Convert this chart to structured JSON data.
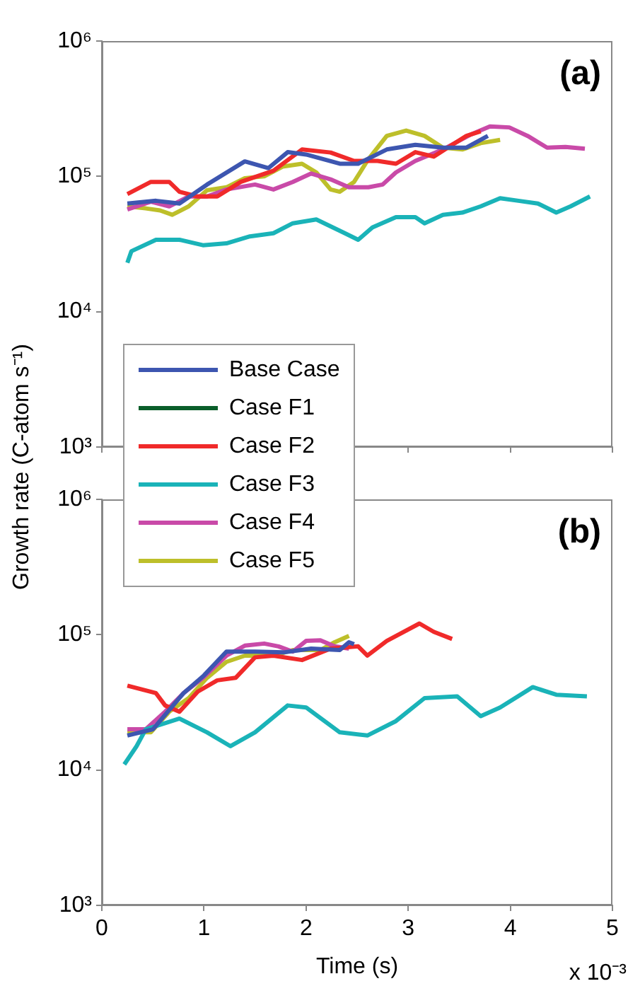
{
  "chart_data": [
    {
      "type": "line",
      "ylabel": "Growth rate (C-atom s⁻¹)",
      "annotations": [
        "(a)"
      ],
      "log": "y",
      "xlim": [
        0,
        5
      ],
      "xticks": [
        0,
        1,
        2,
        3,
        4,
        5
      ],
      "ylim": [
        1000,
        1000000
      ],
      "yticks": [
        {
          "value": 1000,
          "label": "10³"
        },
        {
          "value": 10000,
          "label": "10⁴"
        },
        {
          "value": 100000,
          "label": "10⁵"
        },
        {
          "value": 1000000,
          "label": "10⁶"
        }
      ],
      "tick_labels": "y",
      "grid": false,
      "legend": "bottom left",
      "marker": "none",
      "line_style": "solid",
      "series": [
        {
          "name": "Base Case",
          "color": "#3d56b0",
          "x": [
            0.25,
            0.53,
            0.76,
            1.03,
            1.4,
            1.63,
            1.82,
            2.0,
            2.33,
            2.51,
            2.79,
            3.07,
            3.34,
            3.57,
            3.78
          ],
          "values": [
            63000,
            66000,
            63000,
            87000,
            129000,
            115000,
            151000,
            145000,
            124000,
            124000,
            158000,
            171000,
            163000,
            163000,
            199000
          ]
        },
        {
          "name": "Case F1",
          "color": "#0a5e2a"
        },
        {
          "name": "Case F2",
          "color": "#f02a2a",
          "x": [
            0.25,
            0.48,
            0.66,
            0.76,
            0.94,
            1.13,
            1.36,
            1.68,
            1.96,
            2.24,
            2.47,
            2.7,
            2.88,
            3.07,
            3.25,
            3.43,
            3.57,
            3.71
          ],
          "values": [
            74000,
            91000,
            91000,
            77000,
            71000,
            71000,
            91000,
            110000,
            158000,
            150000,
            130000,
            130000,
            124000,
            151000,
            140000,
            171000,
            199000,
            215000
          ]
        },
        {
          "name": "Case F3",
          "color": "#1ab3b8",
          "x": [
            0.25,
            0.29,
            0.53,
            0.76,
            0.99,
            1.22,
            1.45,
            1.68,
            1.87,
            2.1,
            2.38,
            2.51,
            2.65,
            2.88,
            3.07,
            3.16,
            3.34,
            3.53,
            3.71,
            3.9,
            4.08,
            4.27,
            4.45,
            4.59,
            4.78
          ],
          "values": [
            23000,
            28000,
            34000,
            34000,
            31000,
            32000,
            36000,
            38000,
            45000,
            48000,
            38000,
            34000,
            42000,
            50000,
            50000,
            45000,
            52000,
            54000,
            60000,
            69000,
            66000,
            63000,
            54000,
            60000,
            71000
          ]
        },
        {
          "name": "Case F4",
          "color": "#c94aa8",
          "x": [
            0.25,
            0.48,
            0.66,
            0.85,
            1.03,
            1.22,
            1.5,
            1.68,
            1.87,
            2.05,
            2.24,
            2.42,
            2.61,
            2.75,
            2.88,
            3.07,
            3.34,
            3.62,
            3.8,
            3.99,
            4.17,
            4.36,
            4.54,
            4.73
          ],
          "values": [
            57000,
            65000,
            60000,
            71000,
            71000,
            80000,
            87000,
            80000,
            91000,
            105000,
            95000,
            83000,
            83000,
            87000,
            107000,
            130000,
            158000,
            205000,
            234000,
            230000,
            199000,
            163000,
            165000,
            160000
          ]
        },
        {
          "name": "Case F5",
          "color": "#bdbf2a",
          "x": [
            0.25,
            0.43,
            0.57,
            0.69,
            0.85,
            1.03,
            1.22,
            1.4,
            1.59,
            1.77,
            1.96,
            2.1,
            2.24,
            2.33,
            2.47,
            2.61,
            2.79,
            2.98,
            3.16,
            3.34,
            3.53,
            3.71,
            3.9
          ],
          "values": [
            60000,
            58000,
            56000,
            52000,
            60000,
            79000,
            83000,
            97000,
            100000,
            118000,
            124000,
            107000,
            80000,
            77000,
            91000,
            134000,
            199000,
            218000,
            199000,
            163000,
            158000,
            176000,
            186000
          ]
        }
      ]
    },
    {
      "type": "line",
      "xlabel": "Time (s)",
      "annotations": [
        "(b)",
        "x 10⁻³"
      ],
      "log": "y",
      "xlim": [
        0,
        5
      ],
      "xticks": [
        0,
        1,
        2,
        3,
        4,
        5
      ],
      "ylim": [
        1000,
        1000000
      ],
      "yticks": [
        {
          "value": 1000,
          "label": "10³"
        },
        {
          "value": 10000,
          "label": "10⁴"
        },
        {
          "value": 100000,
          "label": "10⁵"
        },
        {
          "value": 1000000,
          "label": "10⁶"
        }
      ],
      "grid": false,
      "marker": "none",
      "line_style": "solid",
      "series": [
        {
          "color": "#3d56b0",
          "x": [
            0.25,
            0.5,
            0.8,
            1.0,
            1.22,
            1.5,
            1.78,
            2.05,
            2.33,
            2.42,
            2.47
          ],
          "values": [
            18000,
            20000,
            37000,
            50000,
            75000,
            75000,
            74000,
            79000,
            77000,
            88000,
            85000
          ]
        },
        {
          "color": "#f02a2a",
          "x": [
            0.25,
            0.53,
            0.62,
            0.76,
            0.94,
            1.13,
            1.31,
            1.5,
            1.68,
            1.96,
            2.24,
            2.51,
            2.6,
            2.79,
            3.11,
            3.25,
            3.43
          ],
          "values": [
            42000,
            37000,
            30000,
            27000,
            38000,
            46000,
            48000,
            68000,
            70000,
            65000,
            79000,
            82000,
            70000,
            90000,
            121000,
            105000,
            93000
          ]
        },
        {
          "color": "#1ab3b8",
          "x": [
            0.22,
            0.34,
            0.43,
            0.76,
            1.03,
            1.26,
            1.5,
            1.82,
            2.0,
            2.33,
            2.6,
            2.88,
            3.16,
            3.48,
            3.71,
            3.9,
            4.22,
            4.45,
            4.75
          ],
          "values": [
            11000,
            15000,
            20000,
            24000,
            19000,
            15000,
            19000,
            30000,
            29000,
            19000,
            18000,
            23000,
            34000,
            35000,
            25000,
            29000,
            41000,
            36000,
            35000
          ]
        },
        {
          "color": "#c94aa8",
          "x": [
            0.25,
            0.43,
            0.62,
            0.8,
            0.99,
            1.22,
            1.4,
            1.59,
            1.73,
            1.87,
            2.0,
            2.14,
            2.28,
            2.42
          ],
          "values": [
            20000,
            20000,
            27000,
            37000,
            48000,
            70000,
            83000,
            86000,
            82000,
            75000,
            90000,
            91000,
            82000,
            79000
          ]
        },
        {
          "color": "#bdbf2a",
          "x": [
            0.25,
            0.48,
            0.66,
            0.85,
            1.03,
            1.22,
            1.4,
            1.68,
            1.87,
            2.14,
            2.28,
            2.42
          ],
          "values": [
            19000,
            19000,
            27000,
            34000,
            48000,
            63000,
            70000,
            70000,
            77000,
            77000,
            88000,
            98000
          ]
        }
      ]
    }
  ]
}
